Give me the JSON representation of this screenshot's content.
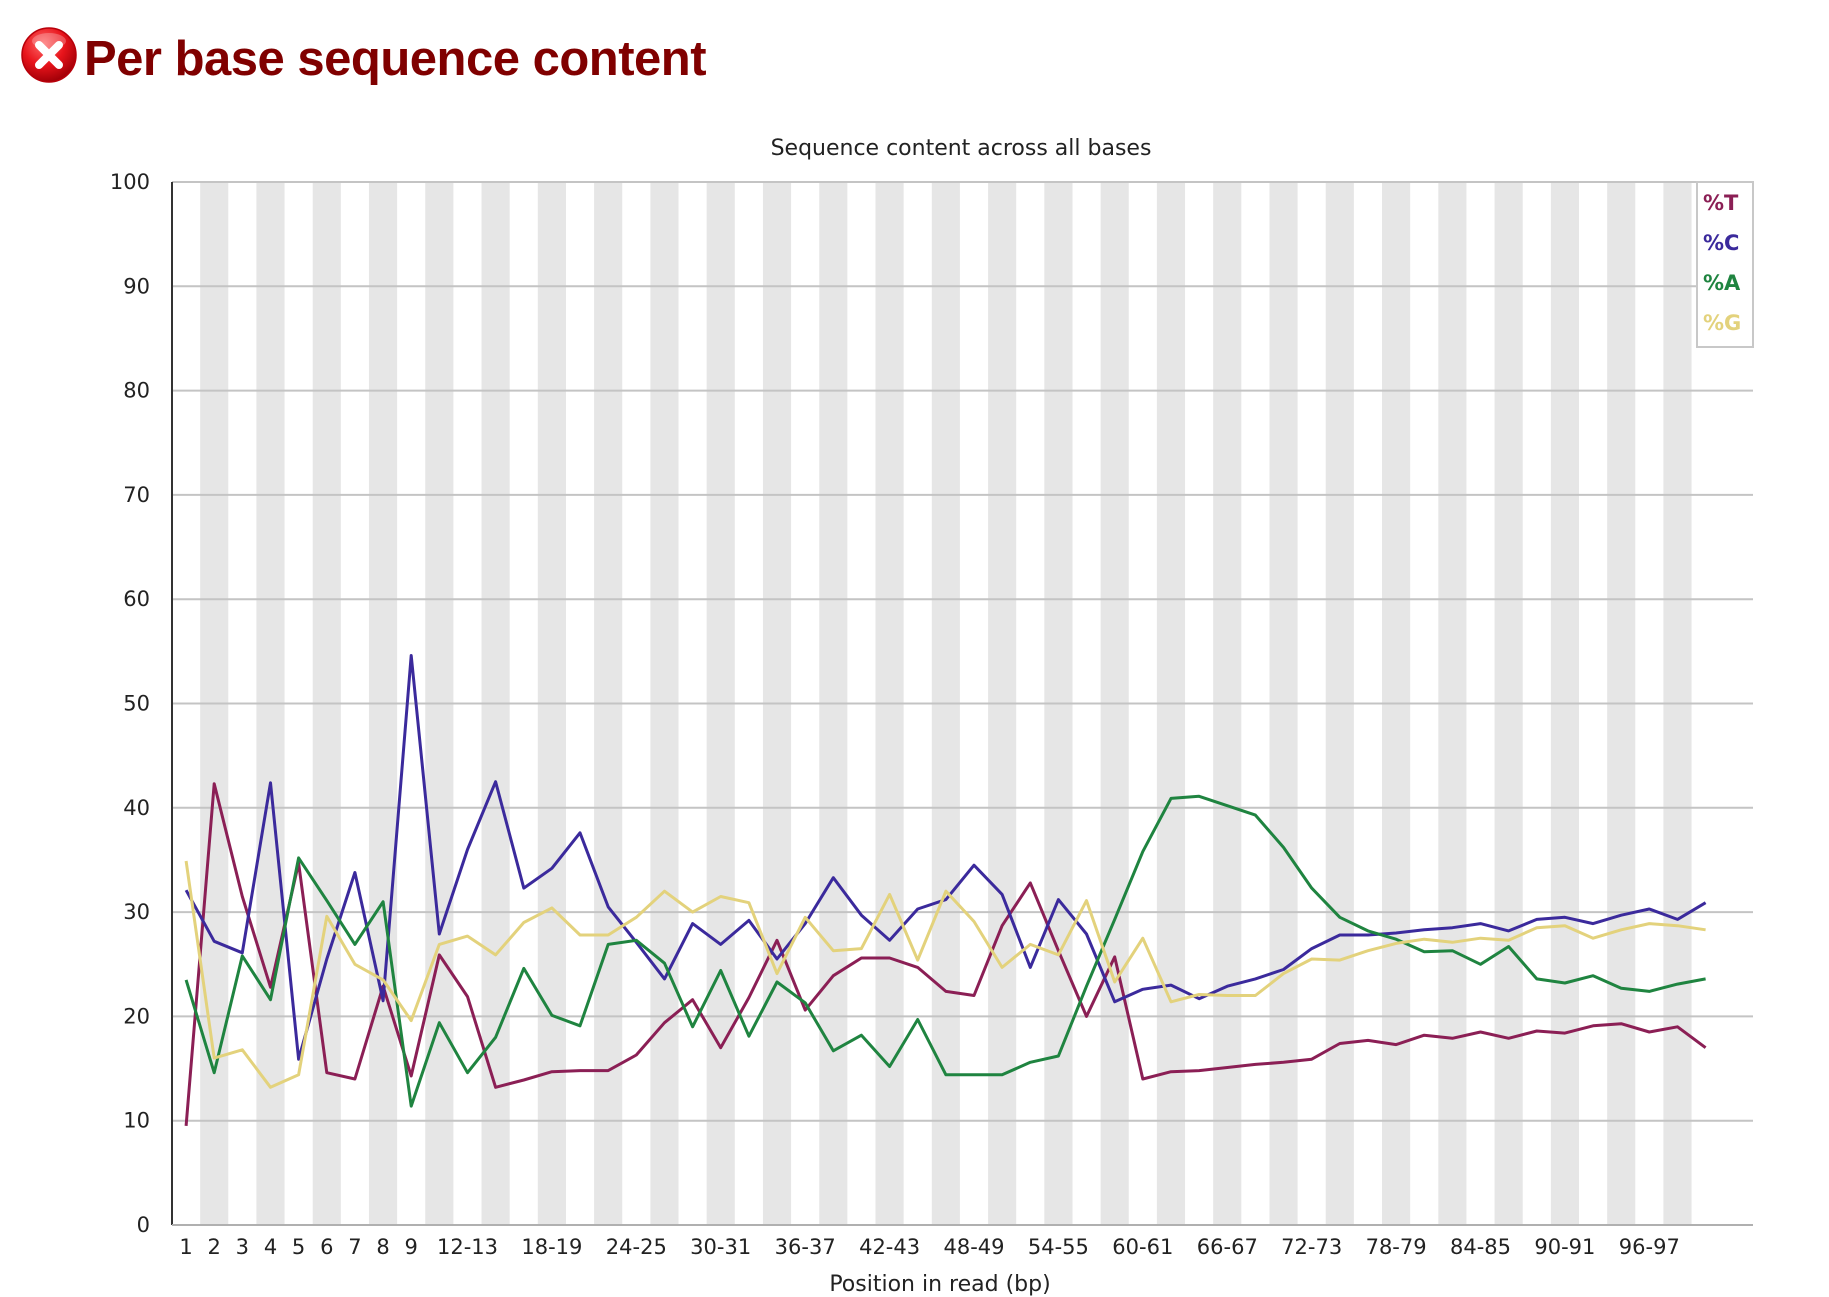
{
  "header": {
    "title": "Per base sequence content",
    "status_icon": "fail-icon"
  },
  "chart_data": {
    "type": "line",
    "title": "Sequence content across all bases",
    "xlabel": "Position in read (bp)",
    "ylabel": "",
    "ylim": [
      0,
      100
    ],
    "yticks": [
      0,
      10,
      20,
      30,
      40,
      50,
      60,
      70,
      80,
      90,
      100
    ],
    "grid": true,
    "legend_position": "top-right",
    "categories": [
      "1",
      "2",
      "3",
      "4",
      "5",
      "6",
      "7",
      "8",
      "9",
      "10-11",
      "12-13",
      "14-15",
      "16-17",
      "18-19",
      "20-21",
      "22-23",
      "24-25",
      "26-27",
      "28-29",
      "30-31",
      "32-33",
      "34-35",
      "36-37",
      "38-39",
      "40-41",
      "42-43",
      "44-45",
      "46-47",
      "48-49",
      "50-51",
      "52-53",
      "54-55",
      "56-57",
      "58-59",
      "60-61",
      "62-63",
      "64-65",
      "66-67",
      "68-69",
      "70-71",
      "72-73",
      "74-75",
      "76-77",
      "78-79",
      "80-81",
      "82-83",
      "84-85",
      "86-87",
      "88-89",
      "90-91",
      "92-93",
      "94-95",
      "96-97",
      "98-99",
      "100-101"
    ],
    "xtick_labels_shown": [
      "1",
      "2",
      "3",
      "4",
      "5",
      "6",
      "7",
      "8",
      "9",
      "12-13",
      "18-19",
      "24-25",
      "30-31",
      "36-37",
      "42-43",
      "48-49",
      "54-55",
      "60-61",
      "66-67",
      "72-73",
      "78-79",
      "84-85",
      "90-91",
      "96-97"
    ],
    "series": [
      {
        "name": "%T",
        "color": "#8b1f55",
        "values": [
          9.5,
          42.3,
          31.5,
          22.8,
          34.7,
          14.6,
          14.0,
          22.9,
          14.3,
          25.9,
          21.9,
          13.2,
          13.9,
          14.7,
          14.8,
          14.8,
          16.3,
          19.4,
          21.6,
          17.0,
          21.8,
          27.3,
          20.6,
          23.9,
          25.6,
          25.6,
          24.7,
          22.4,
          22.0,
          28.7,
          32.8,
          26.3,
          20.0,
          25.7,
          14.0,
          14.7,
          14.8,
          15.1,
          15.4,
          15.6,
          15.9,
          17.4,
          17.7,
          17.3,
          18.2,
          17.9,
          18.5,
          17.9,
          18.6,
          18.4,
          19.1,
          19.3,
          18.5,
          19.0,
          17.0
        ]
      },
      {
        "name": "%C",
        "color": "#3b2a9c",
        "values": [
          32.1,
          27.2,
          26.1,
          42.4,
          15.9,
          25.5,
          33.8,
          21.5,
          54.6,
          27.9,
          36.0,
          42.5,
          32.3,
          34.2,
          37.6,
          30.5,
          27.1,
          23.6,
          28.9,
          26.9,
          29.2,
          25.5,
          28.9,
          33.3,
          29.7,
          27.3,
          30.3,
          31.2,
          34.5,
          31.7,
          24.7,
          31.2,
          27.9,
          21.4,
          22.6,
          23.0,
          21.7,
          22.9,
          23.6,
          24.5,
          26.5,
          27.8,
          27.8,
          28.0,
          28.3,
          28.5,
          28.9,
          28.2,
          29.3,
          29.5,
          28.9,
          29.7,
          30.3,
          29.3,
          30.9
        ]
      },
      {
        "name": "%A",
        "color": "#1f8440",
        "values": [
          23.5,
          14.6,
          25.8,
          21.6,
          35.2,
          31.1,
          26.9,
          31.0,
          11.4,
          19.4,
          14.6,
          18.0,
          24.6,
          20.1,
          19.1,
          26.9,
          27.3,
          25.1,
          19.0,
          24.4,
          18.1,
          23.3,
          21.3,
          16.7,
          18.2,
          15.2,
          19.7,
          14.4,
          14.4,
          14.4,
          15.6,
          16.2,
          22.9,
          29.3,
          35.8,
          40.9,
          41.1,
          40.2,
          39.3,
          36.2,
          32.3,
          29.5,
          28.2,
          27.4,
          26.2,
          26.3,
          25.0,
          26.7,
          23.6,
          23.2,
          23.9,
          22.7,
          22.4,
          23.1,
          23.6
        ]
      },
      {
        "name": "%G",
        "color": "#e3d27c",
        "values": [
          34.9,
          16.0,
          16.8,
          13.2,
          14.4,
          29.6,
          25.0,
          23.5,
          19.6,
          26.9,
          27.7,
          25.9,
          29.0,
          30.4,
          27.8,
          27.8,
          29.5,
          32.0,
          30.0,
          31.5,
          30.9,
          24.1,
          29.5,
          26.3,
          26.5,
          31.7,
          25.4,
          32.0,
          29.1,
          24.7,
          26.9,
          25.9,
          31.1,
          23.3,
          27.5,
          21.4,
          22.1,
          22.0,
          22.0,
          24.1,
          25.5,
          25.4,
          26.3,
          27.0,
          27.4,
          27.1,
          27.5,
          27.3,
          28.5,
          28.7,
          27.5,
          28.3,
          28.9,
          28.7,
          28.3
        ]
      }
    ]
  },
  "colors": {
    "title": "#800000",
    "band_shade": "#e6e6e6",
    "gridline": "#c4c4c4",
    "axis": "#333333",
    "fail_icon": "#e8141b"
  }
}
